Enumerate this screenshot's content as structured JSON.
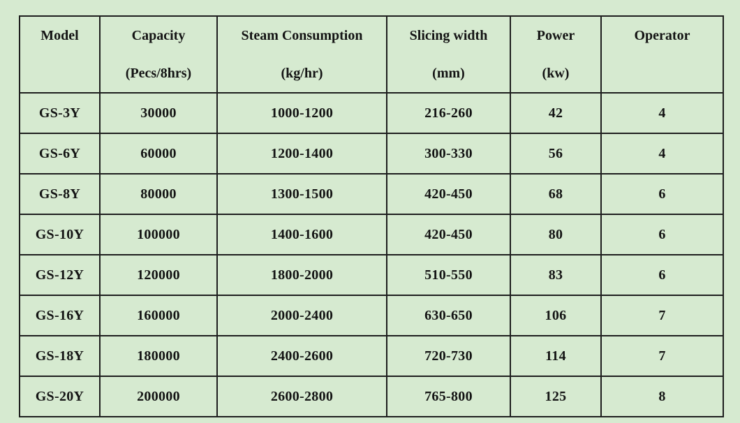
{
  "page": {
    "background_color": "#d6ead0",
    "border_color": "#1e1e1e",
    "text_color": "#141414"
  },
  "table": {
    "columns": [
      {
        "id": "model",
        "label": "Model",
        "unit": ""
      },
      {
        "id": "capacity",
        "label": "Capacity",
        "unit": "(Pecs/8hrs)"
      },
      {
        "id": "steam",
        "label": "Steam Consumption",
        "unit": "(kg/hr)"
      },
      {
        "id": "slicing",
        "label": "Slicing width",
        "unit": "(mm)"
      },
      {
        "id": "power",
        "label": "Power",
        "unit": "(kw)"
      },
      {
        "id": "operator",
        "label": "Operator",
        "unit": ""
      }
    ],
    "rows": [
      [
        "GS-3Y",
        "30000",
        "1000-1200",
        "216-260",
        "42",
        "4"
      ],
      [
        "GS-6Y",
        "60000",
        "1200-1400",
        "300-330",
        "56",
        "4"
      ],
      [
        "GS-8Y",
        "80000",
        "1300-1500",
        "420-450",
        "68",
        "6"
      ],
      [
        "GS-10Y",
        "100000",
        "1400-1600",
        "420-450",
        "80",
        "6"
      ],
      [
        "GS-12Y",
        "120000",
        "1800-2000",
        "510-550",
        "83",
        "6"
      ],
      [
        "GS-16Y",
        "160000",
        "2000-2400",
        "630-650",
        "106",
        "7"
      ],
      [
        "GS-18Y",
        "180000",
        "2400-2600",
        "720-730",
        "114",
        "7"
      ],
      [
        "GS-20Y",
        "200000",
        "2600-2800",
        "765-800",
        "125",
        "8"
      ]
    ]
  }
}
